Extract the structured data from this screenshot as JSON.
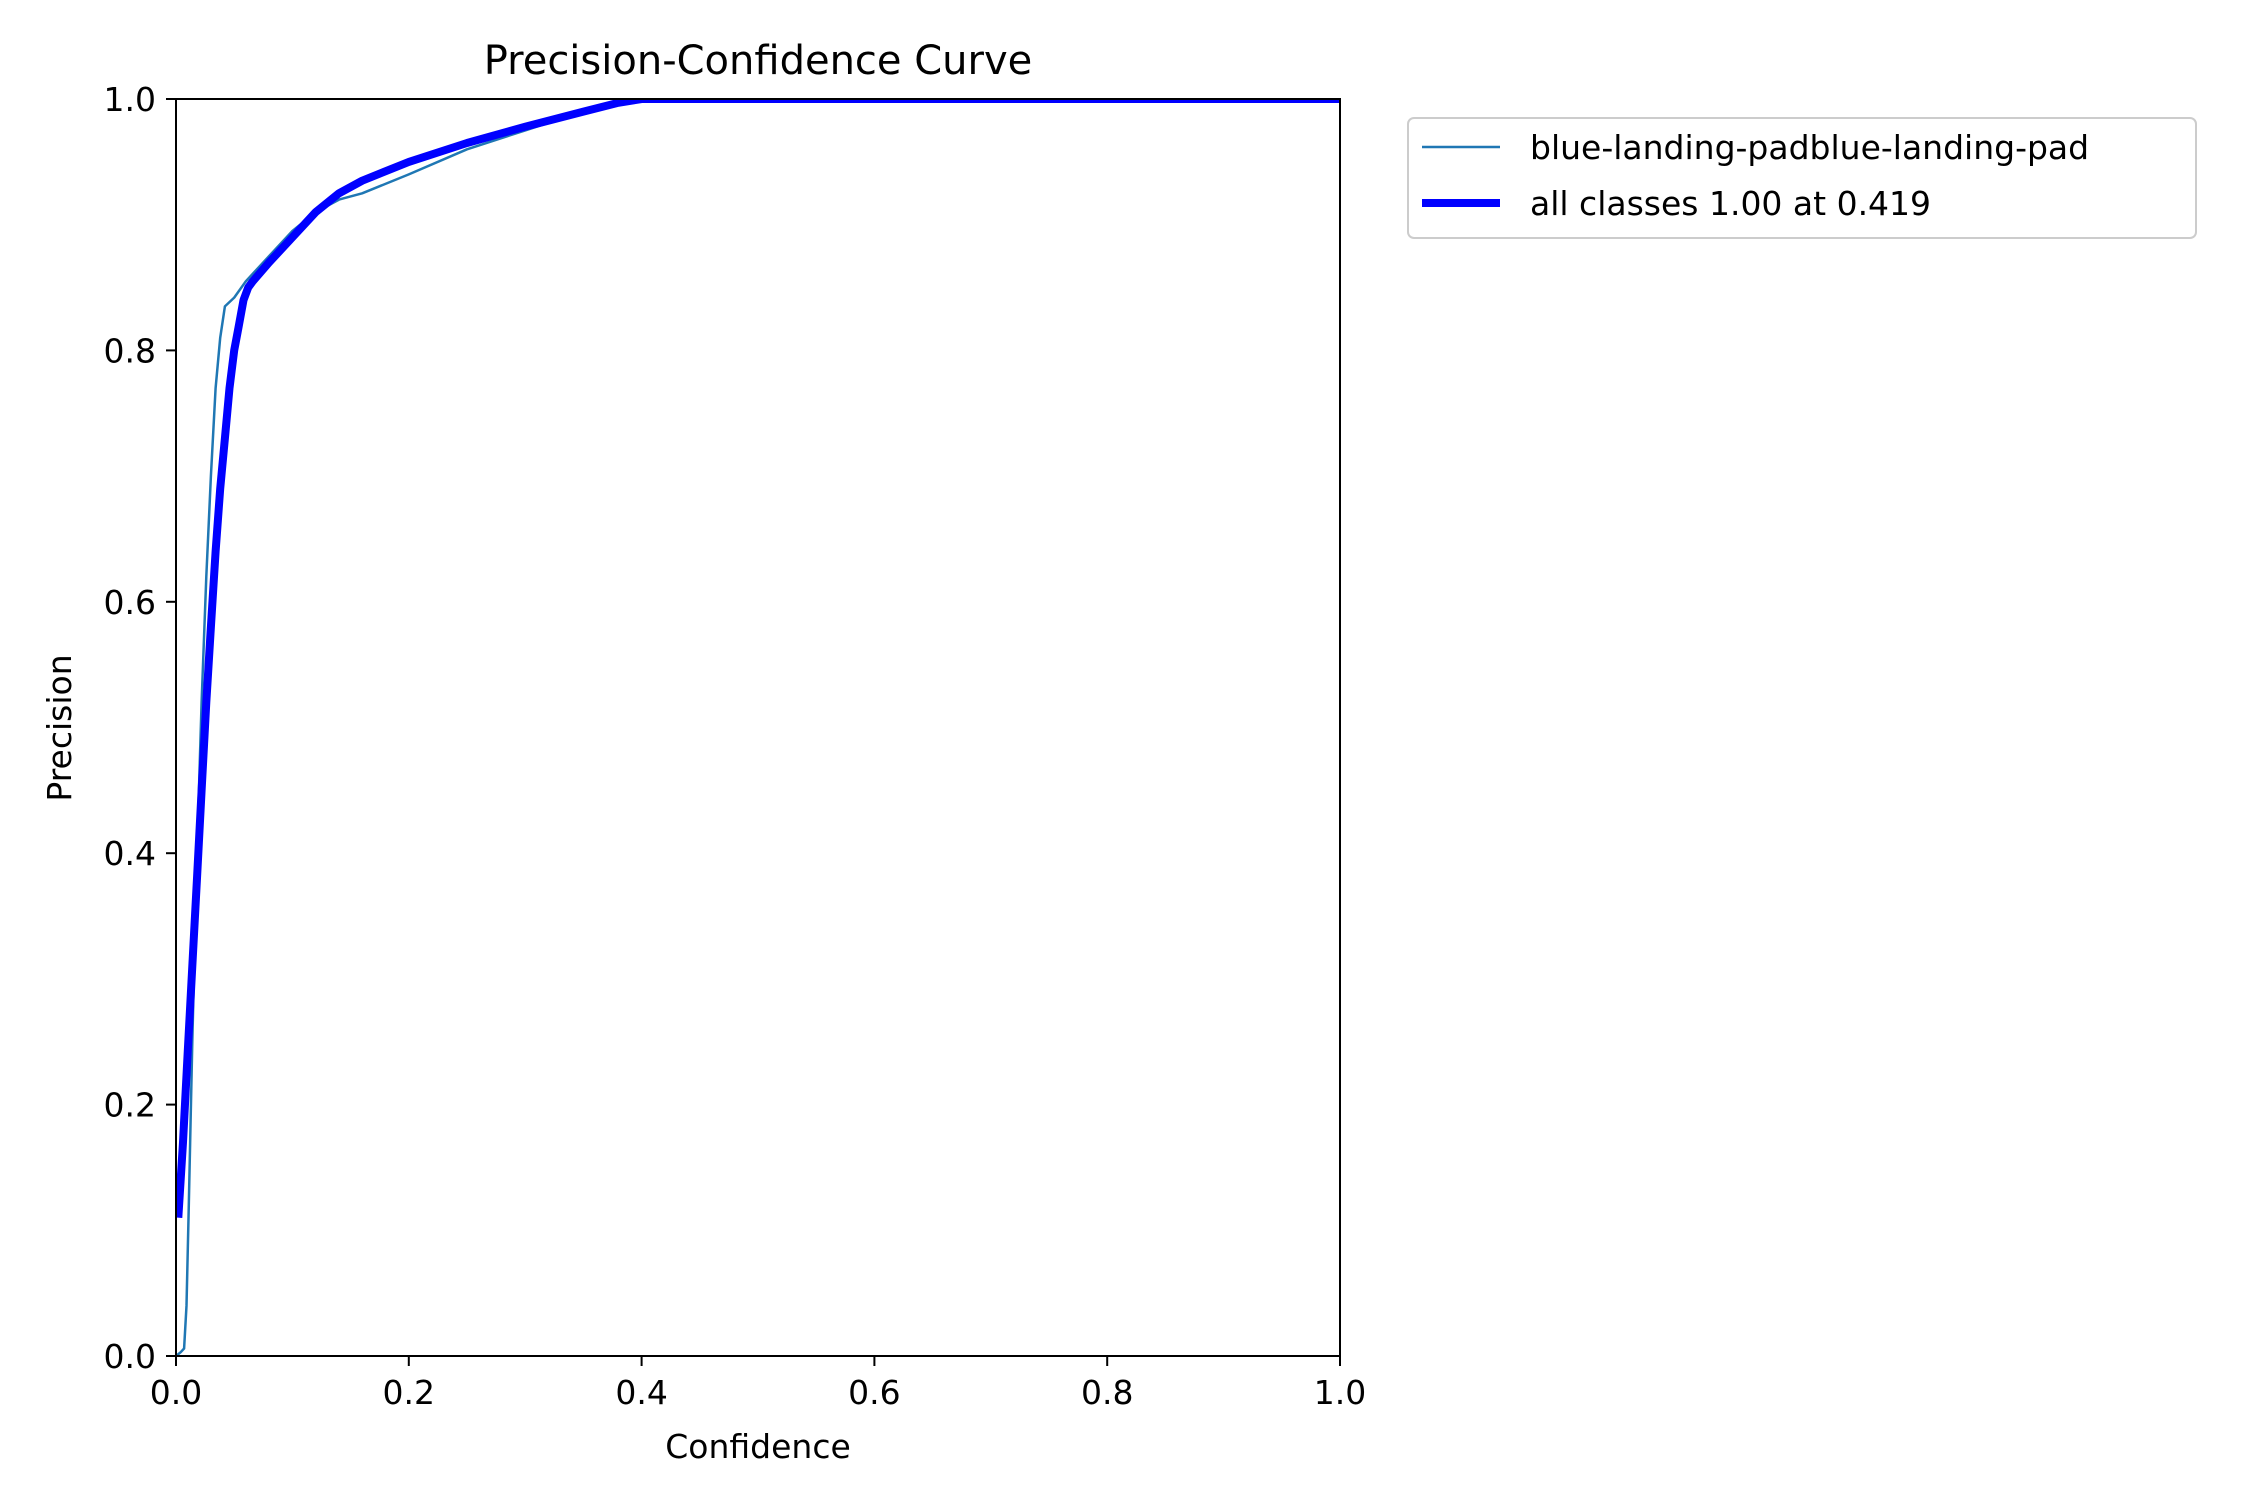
{
  "chart_data": {
    "type": "line",
    "title": "Precision-Confidence Curve",
    "xlabel": "Confidence",
    "ylabel": "Precision",
    "xlim": [
      0,
      1
    ],
    "ylim": [
      0,
      1
    ],
    "xticks": [
      "0.0",
      "0.2",
      "0.4",
      "0.6",
      "0.8",
      "1.0"
    ],
    "yticks": [
      "0.0",
      "0.2",
      "0.4",
      "0.6",
      "0.8",
      "1.0"
    ],
    "grid": false,
    "legend": "outside-top-right",
    "series": [
      {
        "name": "blue-landing-padblue-landing-pad",
        "color": "#1f77b4",
        "style": "thin",
        "x": [
          0.0,
          0.004,
          0.007,
          0.009,
          0.011,
          0.014,
          0.018,
          0.022,
          0.026,
          0.03,
          0.034,
          0.038,
          0.042,
          0.05,
          0.06,
          0.08,
          0.1,
          0.12,
          0.14,
          0.16,
          0.2,
          0.25,
          0.3,
          0.35,
          0.38,
          0.4,
          0.42,
          0.5,
          0.6,
          0.7,
          0.8,
          0.9,
          1.0
        ],
        "y": [
          0.0,
          0.003,
          0.006,
          0.04,
          0.12,
          0.25,
          0.4,
          0.52,
          0.62,
          0.7,
          0.77,
          0.81,
          0.835,
          0.842,
          0.855,
          0.875,
          0.895,
          0.91,
          0.92,
          0.925,
          0.94,
          0.96,
          0.975,
          0.99,
          0.997,
          1.0,
          1.0,
          1.0,
          1.0,
          1.0,
          1.0,
          1.0,
          1.0
        ]
      },
      {
        "name": "all classes 1.00 at 0.419",
        "color": "#0000ff",
        "style": "thick",
        "x": [
          0.002,
          0.006,
          0.01,
          0.014,
          0.018,
          0.022,
          0.026,
          0.03,
          0.034,
          0.038,
          0.042,
          0.046,
          0.05,
          0.054,
          0.058,
          0.062,
          0.066,
          0.08,
          0.1,
          0.12,
          0.14,
          0.16,
          0.2,
          0.25,
          0.3,
          0.35,
          0.38,
          0.4,
          0.419,
          0.5,
          0.6,
          0.7,
          0.8,
          0.9,
          1.0
        ],
        "y": [
          0.11,
          0.17,
          0.24,
          0.31,
          0.38,
          0.45,
          0.52,
          0.58,
          0.64,
          0.69,
          0.73,
          0.77,
          0.8,
          0.82,
          0.84,
          0.85,
          0.855,
          0.87,
          0.89,
          0.91,
          0.925,
          0.935,
          0.95,
          0.965,
          0.978,
          0.99,
          0.997,
          1.0,
          1.0,
          1.0,
          1.0,
          1.0,
          1.0,
          1.0,
          1.0
        ]
      }
    ]
  }
}
